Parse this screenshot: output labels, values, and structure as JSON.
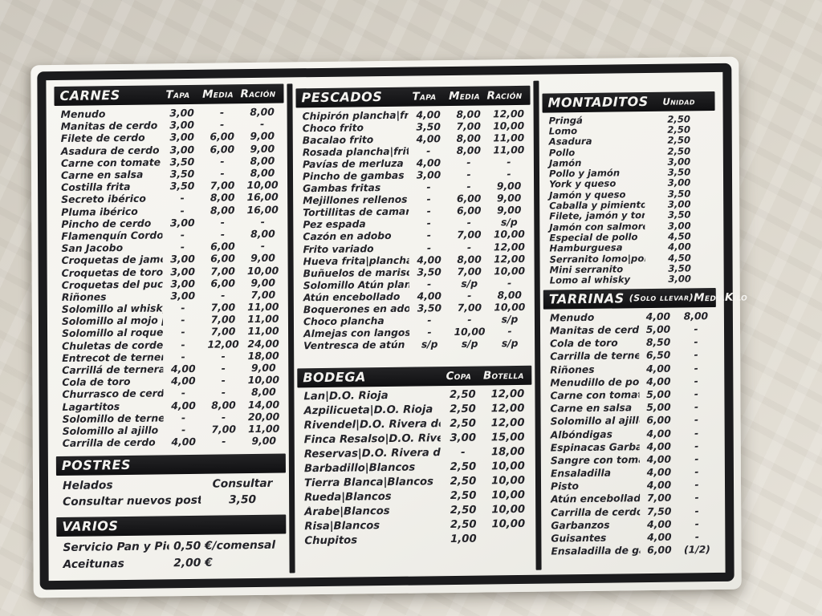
{
  "colors": {
    "frame": "#1b1b1d",
    "card": "#f5f4f0",
    "table": "#d8d3c8",
    "text": "#232329"
  },
  "menu": {
    "carnes": {
      "title": "CARNES",
      "columns": [
        "Tapa",
        "Media",
        "Ración"
      ],
      "items": [
        {
          "name": "Menudo",
          "prices": [
            "3,00",
            "-",
            "8,00"
          ]
        },
        {
          "name": "Manitas de cerdo",
          "prices": [
            "3,00",
            "-",
            "-"
          ]
        },
        {
          "name": "Filete de cerdo",
          "prices": [
            "3,00",
            "6,00",
            "9,00"
          ]
        },
        {
          "name": "Asadura de cerdo",
          "prices": [
            "3,00",
            "6,00",
            "9,00"
          ]
        },
        {
          "name": "Carne con tomate",
          "prices": [
            "3,50",
            "-",
            "8,00"
          ]
        },
        {
          "name": "Carne en salsa",
          "prices": [
            "3,50",
            "-",
            "8,00"
          ]
        },
        {
          "name": "Costilla frita",
          "prices": [
            "3,50",
            "7,00",
            "10,00"
          ]
        },
        {
          "name": "Secreto ibérico",
          "prices": [
            "-",
            "8,00",
            "16,00"
          ]
        },
        {
          "name": "Pluma ibérico",
          "prices": [
            "-",
            "8,00",
            "16,00"
          ]
        },
        {
          "name": "Pincho de cerdo",
          "prices": [
            "3,00",
            "-",
            "-"
          ]
        },
        {
          "name": "Flamenquín Cordobés",
          "prices": [
            "-",
            "-",
            "8,00"
          ]
        },
        {
          "name": "San Jacobo",
          "prices": [
            "-",
            "6,00",
            "-"
          ]
        },
        {
          "name": "Croquetas de jamón",
          "prices": [
            "3,00",
            "6,00",
            "9,00"
          ]
        },
        {
          "name": "Croquetas de toro",
          "prices": [
            "3,00",
            "7,00",
            "10,00"
          ]
        },
        {
          "name": "Croquetas del puchero",
          "prices": [
            "3,00",
            "6,00",
            "9,00"
          ]
        },
        {
          "name": "Riñones",
          "prices": [
            "3,00",
            "-",
            "7,00"
          ]
        },
        {
          "name": "Solomillo al whisky",
          "prices": [
            "-",
            "7,00",
            "11,00"
          ]
        },
        {
          "name": "Solomillo al mojo picón",
          "prices": [
            "-",
            "7,00",
            "11,00"
          ]
        },
        {
          "name": "Solomillo al roque",
          "prices": [
            "-",
            "7,00",
            "11,00"
          ]
        },
        {
          "name": "Chuletas de cordero",
          "prices": [
            "-",
            "12,00",
            "24,00"
          ]
        },
        {
          "name": "Entrecot de ternera",
          "prices": [
            "-",
            "-",
            "18,00"
          ]
        },
        {
          "name": "Carrillá de ternera",
          "prices": [
            "4,00",
            "-",
            "9,00"
          ]
        },
        {
          "name": "Cola de toro",
          "prices": [
            "4,00",
            "-",
            "10,00"
          ]
        },
        {
          "name": "Churrasco de cerdo",
          "prices": [
            "-",
            "-",
            "8,00"
          ]
        },
        {
          "name": "Lagartitos",
          "prices": [
            "4,00",
            "8,00",
            "14,00"
          ]
        },
        {
          "name": "Solomillo de ternera",
          "prices": [
            "-",
            "-",
            "20,00"
          ]
        },
        {
          "name": "Solomillo al ajillo",
          "prices": [
            "-",
            "7,00",
            "11,00"
          ]
        },
        {
          "name": "Carrilla de cerdo",
          "prices": [
            "4,00",
            "-",
            "9,00"
          ]
        }
      ]
    },
    "postres": {
      "title": "POSTRES",
      "items": [
        {
          "name": "Helados",
          "prices": [
            "Consultar"
          ]
        },
        {
          "name": "Consultar nuevos postres",
          "prices": [
            "3,50"
          ]
        }
      ]
    },
    "varios": {
      "title": "VARIOS",
      "items": [
        {
          "name": "Servicio Pan y Picos",
          "prices": [
            "0,50 €/comensal"
          ]
        },
        {
          "name": "Aceitunas",
          "prices": [
            "2,00 €"
          ]
        }
      ]
    },
    "pescados": {
      "title": "PESCADOS",
      "columns": [
        "Tapa",
        "Media",
        "Ración"
      ],
      "items": [
        {
          "name": "Chipirón plancha|frito",
          "prices": [
            "4,00",
            "8,00",
            "12,00"
          ]
        },
        {
          "name": "Choco frito",
          "prices": [
            "3,50",
            "7,00",
            "10,00"
          ]
        },
        {
          "name": "Bacalao frito",
          "prices": [
            "4,00",
            "8,00",
            "11,00"
          ]
        },
        {
          "name": "Rosada plancha|frita",
          "prices": [
            "-",
            "8,00",
            "11,00"
          ]
        },
        {
          "name": "Pavías de merluza",
          "prices": [
            "4,00",
            "-",
            "-"
          ]
        },
        {
          "name": "Pincho de gambas",
          "prices": [
            "3,00",
            "-",
            "-"
          ]
        },
        {
          "name": "Gambas fritas",
          "prices": [
            "-",
            "-",
            "9,00"
          ]
        },
        {
          "name": "Mejillones rellenos",
          "prices": [
            "-",
            "6,00",
            "9,00"
          ]
        },
        {
          "name": "Tortillitas de camarones",
          "prices": [
            "-",
            "6,00",
            "9,00"
          ]
        },
        {
          "name": "Pez espada",
          "prices": [
            "-",
            "-",
            "s/p"
          ]
        },
        {
          "name": "Cazón en adobo",
          "prices": [
            "-",
            "7,00",
            "10,00"
          ]
        },
        {
          "name": "Frito variado",
          "prices": [
            "-",
            "-",
            "12,00"
          ]
        },
        {
          "name": "Hueva frita|plancha",
          "prices": [
            "4,00",
            "8,00",
            "12,00"
          ]
        },
        {
          "name": "Buñuelos de marisco",
          "prices": [
            "3,50",
            "7,00",
            "10,00"
          ]
        },
        {
          "name": "Solomillo Atún plancha",
          "prices": [
            "-",
            "s/p",
            "-"
          ]
        },
        {
          "name": "Atún encebollado",
          "prices": [
            "4,00",
            "-",
            "8,00"
          ]
        },
        {
          "name": "Boquerones en adobo",
          "prices": [
            "3,50",
            "7,00",
            "10,00"
          ]
        },
        {
          "name": "Choco plancha",
          "prices": [
            "-",
            "-",
            "s/p"
          ]
        },
        {
          "name": "Almejas con langostinos",
          "prices": [
            "-",
            "10,00",
            "-"
          ]
        },
        {
          "name": "Ventresca de atún",
          "prices": [
            "s/p",
            "s/p",
            "s/p"
          ]
        }
      ]
    },
    "bodega": {
      "title": "BODEGA",
      "columns": [
        "Copa",
        "Botella"
      ],
      "items": [
        {
          "name": "Lan|D.O. Rioja",
          "prices": [
            "2,50",
            "12,00"
          ]
        },
        {
          "name": "Azpilicueta|D.O. Rioja",
          "prices": [
            "2,50",
            "12,00"
          ]
        },
        {
          "name": "Rivendel|D.O. Rivera del Duero",
          "prices": [
            "2,50",
            "12,00"
          ]
        },
        {
          "name": "Finca Resalso|D.O. Rivera del Duero",
          "prices": [
            "3,00",
            "15,00"
          ]
        },
        {
          "name": "Reservas|D.O. Rivera del Duero",
          "prices": [
            "-",
            "18,00"
          ]
        },
        {
          "name": "Barbadillo|Blancos",
          "prices": [
            "2,50",
            "10,00"
          ]
        },
        {
          "name": "Tierra Blanca|Blancos",
          "prices": [
            "2,50",
            "10,00"
          ]
        },
        {
          "name": "Rueda|Blancos",
          "prices": [
            "2,50",
            "10,00"
          ]
        },
        {
          "name": "Árabe|Blancos",
          "prices": [
            "2,50",
            "10,00"
          ]
        },
        {
          "name": "Risa|Blancos",
          "prices": [
            "2,50",
            "10,00"
          ]
        },
        {
          "name": "Chupitos",
          "prices": [
            "1,00",
            ""
          ]
        }
      ]
    },
    "montaditos": {
      "title": "MONTADITOS",
      "columns": [
        "Unidad"
      ],
      "items": [
        {
          "name": "Pringá",
          "prices": [
            "2,50"
          ]
        },
        {
          "name": "Lomo",
          "prices": [
            "2,50"
          ]
        },
        {
          "name": "Asadura",
          "prices": [
            "2,50"
          ]
        },
        {
          "name": "Pollo",
          "prices": [
            "2,50"
          ]
        },
        {
          "name": "Jamón",
          "prices": [
            "3,00"
          ]
        },
        {
          "name": "Pollo y jamón",
          "prices": [
            "3,50"
          ]
        },
        {
          "name": "York y queso",
          "prices": [
            "3,00"
          ]
        },
        {
          "name": "Jamón y queso",
          "prices": [
            "3,50"
          ]
        },
        {
          "name": "Caballa y pimiento",
          "prices": [
            "3,00"
          ]
        },
        {
          "name": "Filete, jamón y tomate",
          "prices": [
            "3,50"
          ]
        },
        {
          "name": "Jamón con salmorejo",
          "prices": [
            "3,00"
          ]
        },
        {
          "name": "Especial de pollo",
          "prices": [
            "4,50"
          ]
        },
        {
          "name": "Hamburguesa",
          "prices": [
            "4,00"
          ]
        },
        {
          "name": "Serranito lomo|pollo",
          "prices": [
            "4,50"
          ]
        },
        {
          "name": "Mini serranito",
          "prices": [
            "3,50"
          ]
        },
        {
          "name": "Lomo al whisky",
          "prices": [
            "3,00"
          ]
        }
      ]
    },
    "tarrinas": {
      "title": "TARRINAS",
      "subtitle": "(Solo llevar)",
      "columns": [
        "Media",
        "Kilo"
      ],
      "items": [
        {
          "name": "Menudo",
          "prices": [
            "4,00",
            "8,00"
          ]
        },
        {
          "name": "Manitas de cerdo",
          "prices": [
            "5,00",
            "-"
          ]
        },
        {
          "name": "Cola de toro",
          "prices": [
            "8,50",
            "-"
          ]
        },
        {
          "name": "Carrilla de ternera",
          "prices": [
            "6,50",
            "-"
          ]
        },
        {
          "name": "Riñones",
          "prices": [
            "4,00",
            "-"
          ]
        },
        {
          "name": "Menudillo de pollo",
          "prices": [
            "4,00",
            "-"
          ]
        },
        {
          "name": "Carne con tomate",
          "prices": [
            "5,00",
            "-"
          ]
        },
        {
          "name": "Carne en salsa",
          "prices": [
            "5,00",
            "-"
          ]
        },
        {
          "name": "Solomillo al ajillo",
          "prices": [
            "6,00",
            "-"
          ]
        },
        {
          "name": "Albóndigas",
          "prices": [
            "4,00",
            "-"
          ]
        },
        {
          "name": "Espinacas Garbanzos",
          "prices": [
            "4,00",
            "-"
          ]
        },
        {
          "name": "Sangre con tomate",
          "prices": [
            "4,00",
            "-"
          ]
        },
        {
          "name": "Ensaladilla",
          "prices": [
            "4,00",
            "-"
          ]
        },
        {
          "name": "Pisto",
          "prices": [
            "4,00",
            "-"
          ]
        },
        {
          "name": "Atún encebollado",
          "prices": [
            "7,00",
            "-"
          ]
        },
        {
          "name": "Carrilla de cerdo Ibérico",
          "prices": [
            "7,50",
            "-"
          ]
        },
        {
          "name": "Garbanzos",
          "prices": [
            "4,00",
            "-"
          ]
        },
        {
          "name": "Guisantes",
          "prices": [
            "4,00",
            "-"
          ]
        },
        {
          "name": "Ensaladilla de gambas al ajillo",
          "prices": [
            "6,00",
            "(1/2)"
          ]
        }
      ]
    }
  }
}
